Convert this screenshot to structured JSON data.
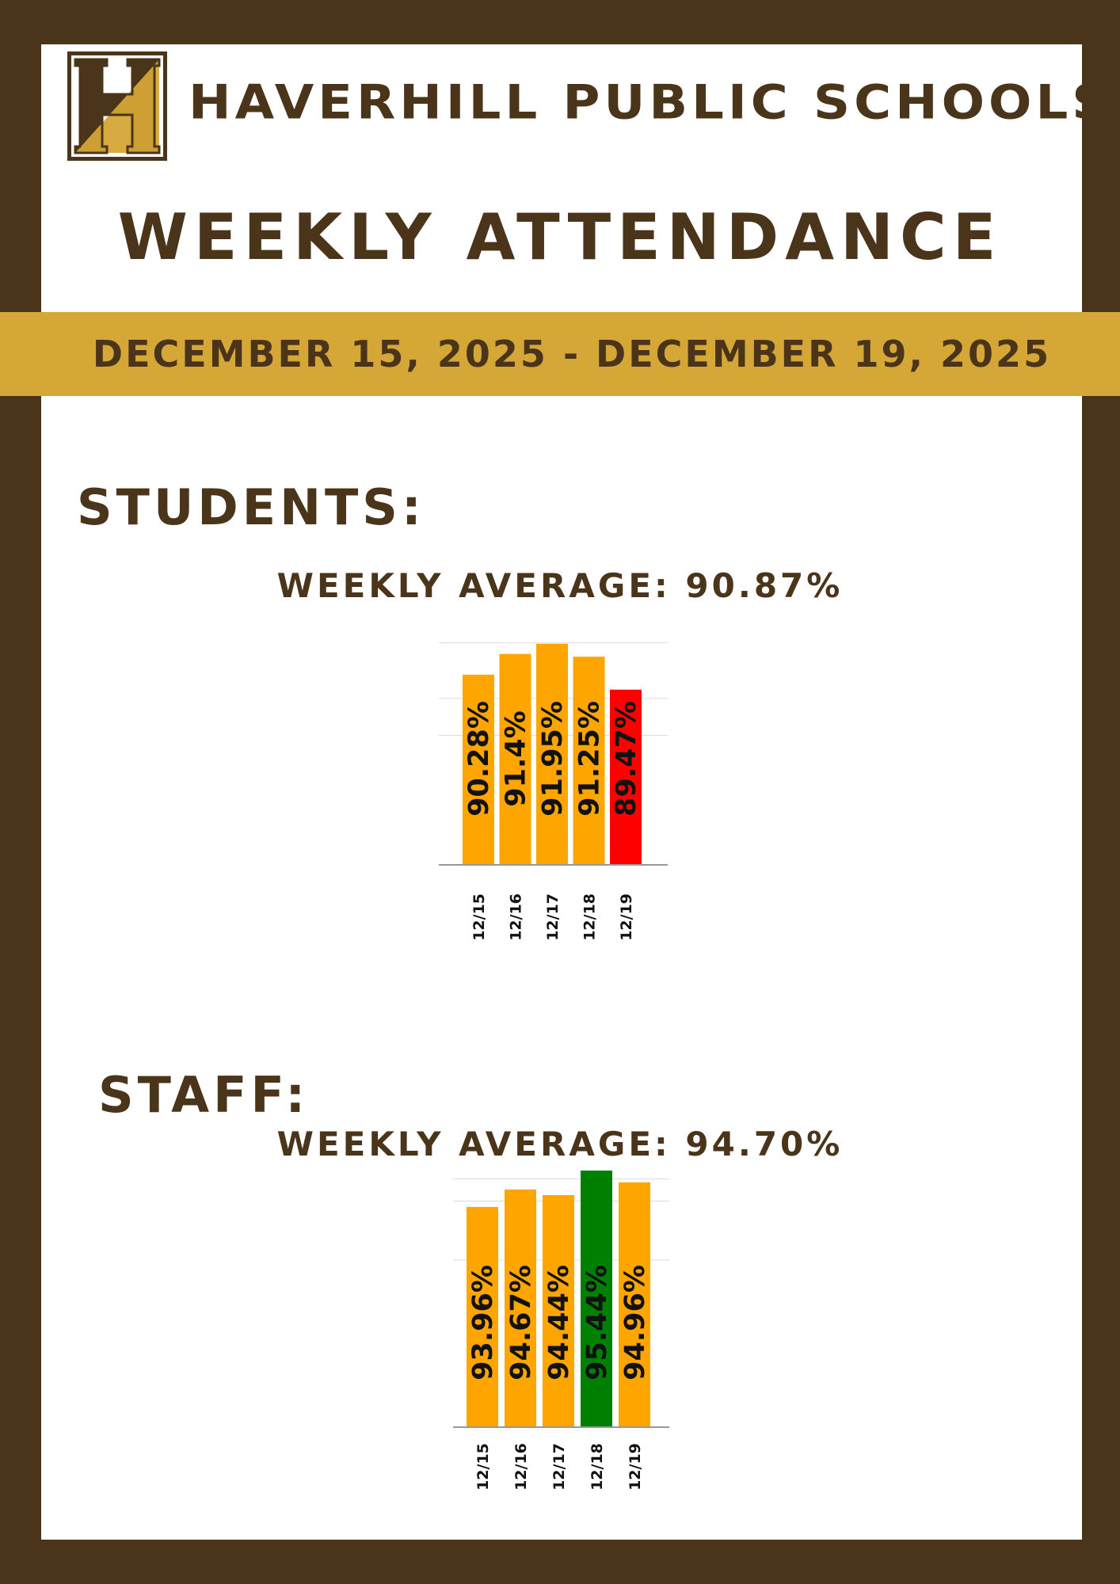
{
  "header": {
    "school_name": "HAVERHILL PUBLIC SCHOOLS",
    "logo_letter": "H",
    "title": "WEEKLY ATTENDANCE",
    "date_range": "DECEMBER 15, 2025 - DECEMBER 19, 2025"
  },
  "colors": {
    "brown": "#4a341a",
    "gold": "#d5a736",
    "bar_default": "#ffa500",
    "bar_low": "#ff0000",
    "bar_high": "#008000"
  },
  "students": {
    "label": "STUDENTS:",
    "average_text": "WEEKLY AVERAGE: 90.87%"
  },
  "staff": {
    "label": "STAFF:",
    "average_text": "WEEKLY AVERAGE: 94.70%"
  },
  "chart_data": [
    {
      "type": "bar",
      "categories": [
        "12/15",
        "12/16",
        "12/17",
        "12/18",
        "12/19"
      ],
      "values": [
        90.28,
        91.4,
        91.95,
        91.25,
        89.47
      ],
      "labels": [
        "90.28%",
        "91.4%",
        "91.95%",
        "91.25%",
        "89.47%"
      ],
      "colors": [
        "#ffa500",
        "#ffa500",
        "#ffa500",
        "#ffa500",
        "#ff0000"
      ],
      "ylim": [
        0,
        100
      ],
      "grid": true
    },
    {
      "type": "bar",
      "categories": [
        "12/15",
        "12/16",
        "12/17",
        "12/18",
        "12/19"
      ],
      "values": [
        93.96,
        94.67,
        94.44,
        95.44,
        94.96
      ],
      "labels": [
        "93.96%",
        "94.67%",
        "94.44%",
        "95.44%",
        "94.96%"
      ],
      "colors": [
        "#ffa500",
        "#ffa500",
        "#ffa500",
        "#008000",
        "#ffa500"
      ],
      "ylim": [
        0,
        100
      ],
      "grid": true
    }
  ]
}
